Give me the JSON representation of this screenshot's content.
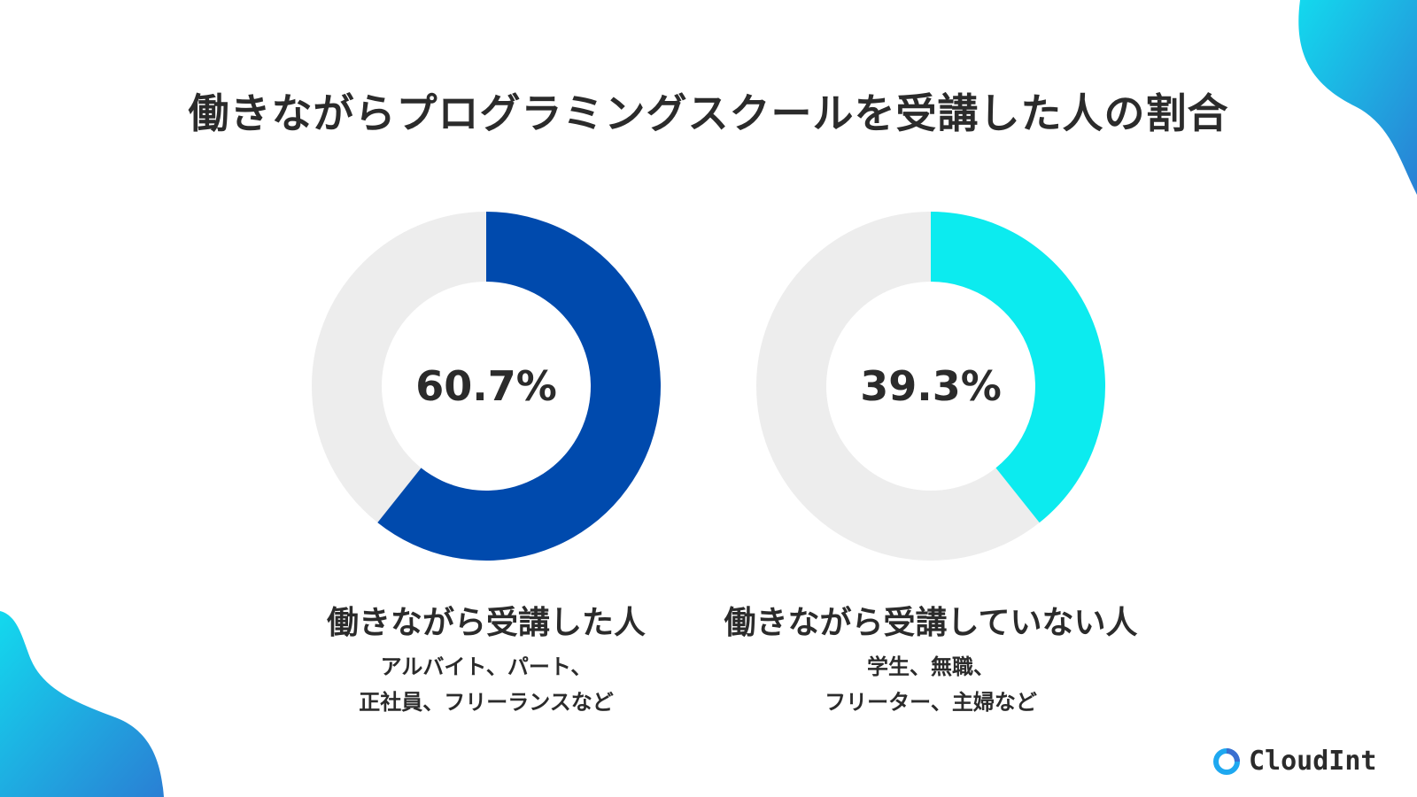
{
  "title": "働きながらプログラミングスクールを受講した人の割合",
  "chart_data": [
    {
      "type": "pie",
      "variant": "donut",
      "values": [
        60.7,
        39.3
      ],
      "highlight_value": 60.7,
      "center_label": "60.7%",
      "label": "働きながら受講した人",
      "sub_lines": [
        "アルバイト、パート、",
        "正社員、フリーランスなど"
      ],
      "color": "#004AAD",
      "rest_color": "#EDEDED"
    },
    {
      "type": "pie",
      "variant": "donut",
      "values": [
        39.3,
        60.7
      ],
      "highlight_value": 39.3,
      "center_label": "39.3%",
      "label": "働きながら受講していない人",
      "sub_lines": [
        "学生、無職、",
        "フリーター、主婦など"
      ],
      "color": "#0CEBEF",
      "rest_color": "#EDEDED"
    }
  ],
  "logo": {
    "text": "CloudInt",
    "icon": "ring-logo-icon",
    "color": "#1E90E0"
  },
  "decor": {
    "blob_colors": [
      "#13D9EE",
      "#2A8AD8"
    ]
  }
}
